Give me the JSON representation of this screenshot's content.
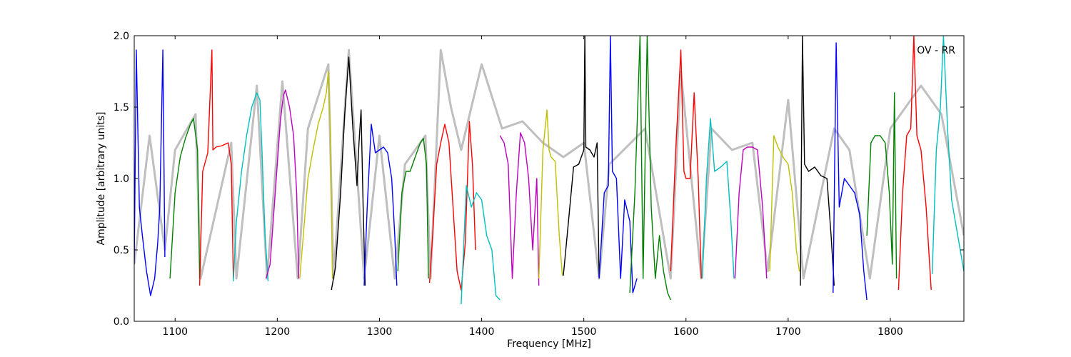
{
  "chart_data": {
    "type": "line",
    "title": "",
    "annotation": "OV - RR",
    "xlabel": "Frequency [MHz]",
    "ylabel": "Amplitude [arbitrary units]",
    "xlim": [
      1060,
      1872
    ],
    "ylim": [
      0.0,
      2.0
    ],
    "grid": false,
    "xticks": [
      1100,
      1200,
      1300,
      1400,
      1500,
      1600,
      1700,
      1800
    ],
    "yticks": [
      0.0,
      0.5,
      1.0,
      1.5,
      2.0
    ],
    "xtick_labels": [
      "1100",
      "1200",
      "1300",
      "1400",
      "1500",
      "1600",
      "1700",
      "1800"
    ],
    "ytick_labels": [
      "0.0",
      "0.5",
      "1.0",
      "1.5",
      "2.0"
    ],
    "reference_series": {
      "color": "#bfbfbf",
      "x": [
        1060,
        1075,
        1090,
        1100,
        1120,
        1125,
        1155,
        1160,
        1180,
        1190,
        1205,
        1220,
        1230,
        1250,
        1255,
        1270,
        1285,
        1300,
        1315,
        1325,
        1345,
        1350,
        1360,
        1370,
        1380,
        1400,
        1420,
        1440,
        1460,
        1480,
        1500,
        1515,
        1525,
        1560,
        1585,
        1595,
        1615,
        1625,
        1645,
        1665,
        1680,
        1700,
        1715,
        1745,
        1760,
        1780,
        1800,
        1830,
        1850,
        1872
      ],
      "y": [
        0.4,
        1.3,
        0.5,
        1.2,
        1.45,
        0.3,
        1.25,
        0.3,
        1.65,
        0.3,
        1.68,
        0.3,
        1.35,
        1.8,
        0.3,
        1.9,
        0.3,
        1.3,
        0.3,
        1.1,
        1.3,
        0.3,
        1.9,
        1.5,
        1.2,
        1.8,
        1.35,
        1.4,
        1.25,
        1.15,
        1.25,
        0.3,
        1.1,
        1.35,
        0.3,
        1.75,
        0.3,
        1.35,
        1.2,
        1.25,
        0.35,
        1.55,
        0.3,
        1.35,
        1.2,
        0.3,
        1.35,
        1.65,
        1.45,
        0.6
      ]
    },
    "series": [
      {
        "color": "#0000ff",
        "x": [
          1060,
          1062,
          1065,
          1068,
          1072,
          1076,
          1080,
          1083,
          1085,
          1088,
          1090
        ],
        "y": [
          0.4,
          1.9,
          0.8,
          0.6,
          0.35,
          0.18,
          0.3,
          0.55,
          0.8,
          1.9,
          0.45
        ]
      },
      {
        "color": "#008000",
        "x": [
          1095,
          1100,
          1105,
          1110,
          1115,
          1118,
          1122,
          1124
        ],
        "y": [
          0.3,
          0.9,
          1.15,
          1.28,
          1.38,
          1.42,
          1.2,
          0.3
        ]
      },
      {
        "color": "#ff0000",
        "x": [
          1124,
          1127,
          1132,
          1136,
          1137,
          1140,
          1146,
          1152,
          1155,
          1157
        ],
        "y": [
          0.25,
          1.05,
          1.18,
          1.9,
          1.2,
          1.22,
          1.23,
          1.25,
          1.1,
          0.3
        ]
      },
      {
        "color": "#00bfbf",
        "x": [
          1157,
          1160,
          1165,
          1170,
          1175,
          1180,
          1183,
          1185,
          1188,
          1191
        ],
        "y": [
          0.28,
          0.7,
          1.05,
          1.3,
          1.5,
          1.6,
          1.55,
          1.2,
          0.6,
          0.28
        ]
      },
      {
        "color": "#bf00bf",
        "x": [
          1189,
          1193,
          1198,
          1203,
          1206,
          1208,
          1212,
          1216,
          1219,
          1221
        ],
        "y": [
          0.3,
          0.4,
          0.9,
          1.4,
          1.58,
          1.62,
          1.5,
          1.3,
          0.9,
          0.3
        ]
      },
      {
        "color": "#bfbf00",
        "x": [
          1222,
          1226,
          1230,
          1235,
          1240,
          1245,
          1248,
          1250,
          1252,
          1254
        ],
        "y": [
          0.3,
          0.65,
          1.0,
          1.2,
          1.38,
          1.5,
          1.6,
          1.75,
          1.3,
          0.3
        ]
      },
      {
        "color": "#000000",
        "x": [
          1253,
          1257,
          1262,
          1266,
          1270,
          1274,
          1278,
          1280,
          1282,
          1284,
          1286
        ],
        "y": [
          0.22,
          0.38,
          0.9,
          1.45,
          1.85,
          1.35,
          0.95,
          1.25,
          1.48,
          0.8,
          0.25
        ]
      },
      {
        "color": "#0000ff",
        "x": [
          1285,
          1288,
          1292,
          1296,
          1300,
          1304,
          1308,
          1312,
          1315,
          1317
        ],
        "y": [
          0.25,
          0.8,
          1.38,
          1.18,
          1.2,
          1.22,
          1.18,
          1.0,
          0.6,
          0.25
        ]
      },
      {
        "color": "#008000",
        "x": [
          1318,
          1322,
          1326,
          1330,
          1335,
          1340,
          1343,
          1346,
          1348
        ],
        "y": [
          0.35,
          0.9,
          1.05,
          1.05,
          1.15,
          1.25,
          1.28,
          1.1,
          0.3
        ]
      },
      {
        "color": "#ff0000",
        "x": [
          1349,
          1352,
          1356,
          1360,
          1364,
          1368,
          1372,
          1376,
          1380,
          1384,
          1388,
          1391,
          1394
        ],
        "y": [
          0.27,
          0.6,
          1.1,
          1.25,
          1.38,
          1.25,
          0.8,
          0.35,
          0.22,
          0.55,
          1.4,
          1.1,
          0.5
        ]
      },
      {
        "color": "#00bfbf",
        "x": [
          1380,
          1385,
          1390,
          1395,
          1400,
          1405,
          1410,
          1414,
          1418
        ],
        "y": [
          0.12,
          0.95,
          0.8,
          0.9,
          0.85,
          0.6,
          0.5,
          0.18,
          0.15
        ]
      },
      {
        "color": "#bf00bf",
        "x": [
          1418,
          1422,
          1426,
          1430,
          1434,
          1438,
          1442,
          1446,
          1450,
          1454,
          1456
        ],
        "y": [
          1.3,
          1.25,
          1.1,
          0.3,
          0.9,
          1.32,
          1.25,
          1.0,
          0.5,
          1.0,
          0.25
        ]
      },
      {
        "color": "#bfbf00",
        "x": [
          1456,
          1460,
          1464,
          1466,
          1468,
          1472,
          1476,
          1479
        ],
        "y": [
          0.3,
          1.2,
          1.48,
          1.2,
          1.15,
          1.12,
          0.6,
          0.32
        ]
      },
      {
        "color": "#000000",
        "x": [
          1480,
          1485,
          1490,
          1495,
          1500,
          1501,
          1502,
          1506,
          1510,
          1513,
          1515
        ],
        "y": [
          0.32,
          0.7,
          1.08,
          1.1,
          1.2,
          2.0,
          1.22,
          1.2,
          1.15,
          1.25,
          0.3
        ]
      },
      {
        "color": "#0000ff",
        "x": [
          1515,
          1520,
          1524,
          1526,
          1528,
          1532,
          1536,
          1540,
          1545,
          1548,
          1552
        ],
        "y": [
          0.3,
          0.9,
          0.95,
          2.0,
          1.05,
          1.0,
          0.3,
          0.85,
          0.7,
          0.2,
          0.3
        ]
      },
      {
        "color": "#008000",
        "x": [
          1545,
          1550,
          1555,
          1558,
          1562,
          1566,
          1570,
          1574,
          1578,
          1582,
          1585
        ],
        "y": [
          0.2,
          0.9,
          2.0,
          0.3,
          2.0,
          0.8,
          0.3,
          0.6,
          0.35,
          0.2,
          0.15
        ]
      },
      {
        "color": "#ff0000",
        "x": [
          1585,
          1590,
          1595,
          1598,
          1600,
          1604,
          1608,
          1612,
          1615
        ],
        "y": [
          0.35,
          1.2,
          1.9,
          1.05,
          1.0,
          1.0,
          1.6,
          1.0,
          0.3
        ]
      },
      {
        "color": "#00bfbf",
        "x": [
          1616,
          1620,
          1624,
          1628,
          1634,
          1640,
          1644,
          1647
        ],
        "y": [
          0.3,
          1.0,
          1.42,
          1.05,
          1.08,
          1.12,
          0.7,
          0.3
        ]
      },
      {
        "color": "#bf00bf",
        "x": [
          1648,
          1652,
          1656,
          1660,
          1665,
          1670,
          1675,
          1679
        ],
        "y": [
          0.3,
          0.9,
          1.2,
          1.22,
          1.22,
          1.2,
          0.8,
          0.3
        ]
      },
      {
        "color": "#bfbf00",
        "x": [
          1682,
          1686,
          1690,
          1695,
          1700,
          1704,
          1708,
          1711
        ],
        "y": [
          0.35,
          1.3,
          1.22,
          1.15,
          1.1,
          0.9,
          0.5,
          0.35
        ]
      },
      {
        "color": "#000000",
        "x": [
          1712,
          1714,
          1716,
          1720,
          1726,
          1732,
          1738,
          1742,
          1745
        ],
        "y": [
          0.25,
          2.0,
          1.1,
          1.05,
          1.08,
          1.02,
          1.0,
          0.6,
          0.25
        ]
      },
      {
        "color": "#0000ff",
        "x": [
          1744,
          1747,
          1750,
          1755,
          1760,
          1765,
          1770,
          1774,
          1777
        ],
        "y": [
          0.2,
          1.95,
          0.8,
          1.0,
          0.95,
          0.9,
          0.75,
          0.35,
          0.15
        ]
      },
      {
        "color": "#008000",
        "x": [
          1777,
          1781,
          1785,
          1790,
          1795,
          1799,
          1802,
          1804,
          1806
        ],
        "y": [
          0.6,
          1.25,
          1.3,
          1.3,
          1.25,
          0.9,
          0.4,
          1.6,
          0.3
        ]
      },
      {
        "color": "#ff0000",
        "x": [
          1808,
          1812,
          1816,
          1820,
          1823,
          1826,
          1830,
          1835,
          1840
        ],
        "y": [
          0.22,
          0.9,
          1.3,
          1.35,
          2.0,
          1.3,
          1.2,
          0.8,
          0.22
        ]
      },
      {
        "color": "#00bfbf",
        "x": [
          1841,
          1845,
          1849,
          1852,
          1856,
          1860,
          1866,
          1872
        ],
        "y": [
          0.33,
          1.2,
          1.5,
          2.0,
          1.35,
          0.85,
          0.6,
          0.35
        ]
      }
    ]
  }
}
